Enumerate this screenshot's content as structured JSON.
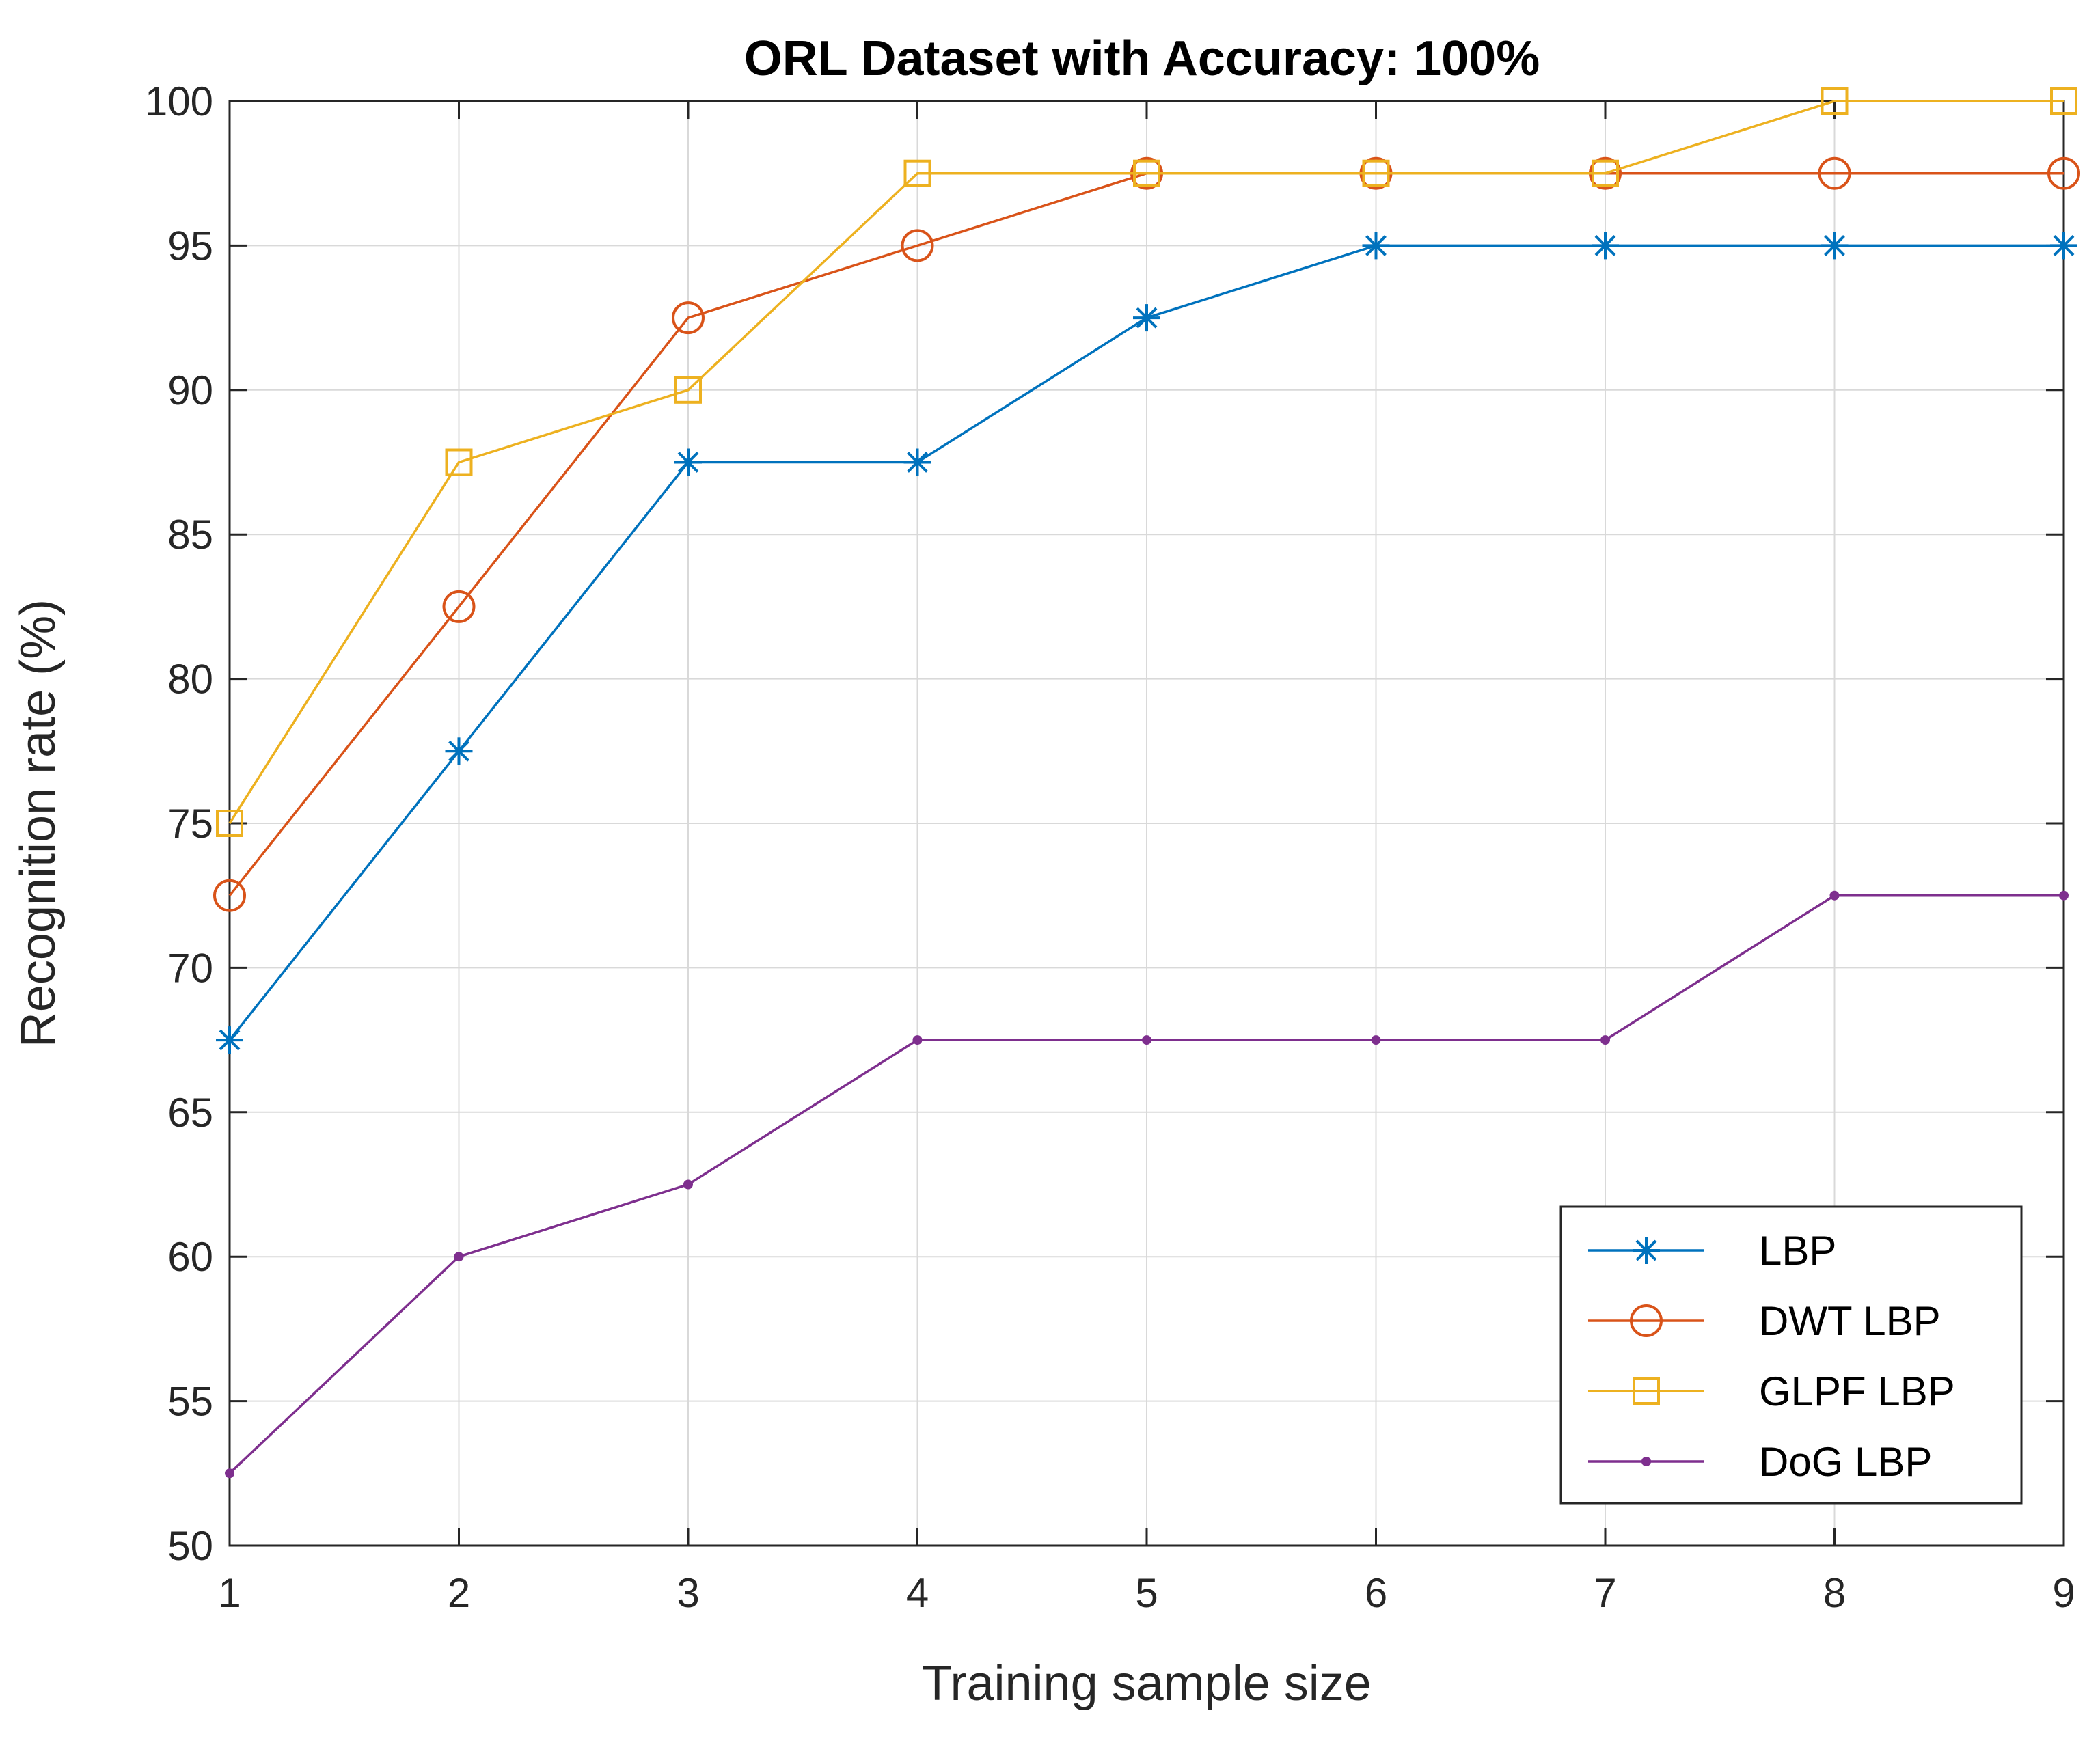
{
  "chart_data": {
    "type": "line",
    "title": "ORL Dataset with Accuracy: 100%",
    "xlabel": "Training sample size",
    "ylabel": "Recognition rate (%)",
    "xlim": [
      1,
      9
    ],
    "ylim": [
      50,
      100
    ],
    "x": [
      1,
      2,
      3,
      4,
      5,
      6,
      7,
      8,
      9
    ],
    "xticks": [
      "1",
      "2",
      "3",
      "4",
      "5",
      "6",
      "7",
      "8",
      "9"
    ],
    "yticks": [
      "50",
      "55",
      "60",
      "65",
      "70",
      "75",
      "80",
      "85",
      "90",
      "95",
      "100"
    ],
    "grid": true,
    "legend_position": "bottom-right",
    "series": [
      {
        "name": "LBP",
        "marker": "asterisk",
        "color": "#0072BD",
        "values": [
          67.5,
          77.5,
          87.5,
          87.5,
          92.5,
          95,
          95,
          95,
          95
        ]
      },
      {
        "name": "DWT LBP",
        "marker": "circle",
        "color": "#D95319",
        "values": [
          72.5,
          82.5,
          92.5,
          95,
          97.5,
          97.5,
          97.5,
          97.5,
          97.5
        ]
      },
      {
        "name": "GLPF LBP",
        "marker": "square",
        "color": "#EDB120",
        "values": [
          75,
          87.5,
          90,
          97.5,
          97.5,
          97.5,
          97.5,
          100,
          100
        ]
      },
      {
        "name": "DoG LBP",
        "marker": "point",
        "color": "#7E2F8E",
        "values": [
          52.5,
          60,
          62.5,
          67.5,
          67.5,
          67.5,
          67.5,
          72.5,
          72.5
        ]
      }
    ]
  }
}
